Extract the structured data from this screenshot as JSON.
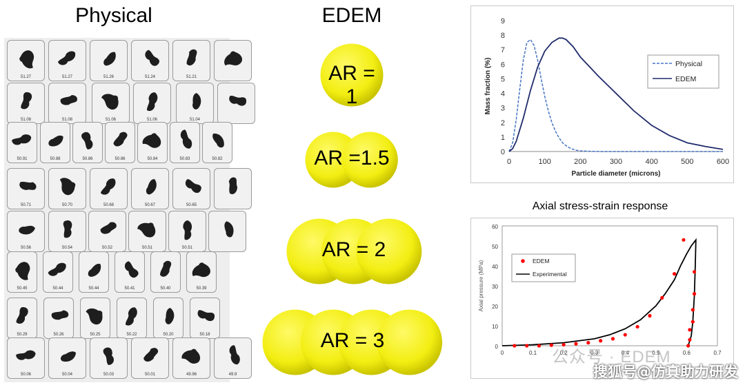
{
  "titles": {
    "physical": "Physical",
    "edem": "EDEM"
  },
  "particles": {
    "rows": [
      [
        "51.27",
        "51.27",
        "51.26",
        "51.24",
        "51.21",
        ""
      ],
      [
        "51.08",
        "51.08",
        "51.06",
        "51.06",
        "51.04",
        ""
      ],
      [
        "50.91",
        "50.88",
        "50.86",
        "50.86",
        "50.84",
        "50.83",
        "50.82"
      ],
      [
        "50.71",
        "50.70",
        "50.68",
        "50.67",
        "50.65",
        ""
      ],
      [
        "50.56",
        "50.54",
        "50.52",
        "50.51",
        "50.51",
        ""
      ],
      [
        "50.45",
        "50.44",
        "50.44",
        "50.41",
        "50.40",
        "50.39"
      ],
      [
        "50.29",
        "50.26",
        "50.25",
        "50.22",
        "50.20",
        "50.18"
      ],
      [
        "50.06",
        "50.04",
        "50.03",
        "50.01",
        "49.96",
        "49.9"
      ]
    ]
  },
  "edem_models": [
    {
      "label": "AR = 1",
      "spheres": 1
    },
    {
      "label": "AR =1.5",
      "spheres": 2
    },
    {
      "label": "AR = 2",
      "spheres": 3
    },
    {
      "label": "AR = 3",
      "spheres": 4
    }
  ],
  "colors": {
    "sphere": "#f2ee12",
    "physical_line": "#4472c4",
    "edem_line": "#1f2a6b",
    "edem_points": "#ff0000"
  },
  "chart_data": [
    {
      "type": "line",
      "title": "",
      "xlabel": "Particle diameter (microns)",
      "ylabel": "Mass fraction (%)",
      "xlim": [
        0,
        600
      ],
      "ylim": [
        0,
        9
      ],
      "xticks": [
        "0",
        "100",
        "200",
        "300",
        "400",
        "500",
        "600"
      ],
      "yticks": [
        "0",
        "1",
        "2",
        "3",
        "4",
        "5",
        "6",
        "7",
        "8",
        "9"
      ],
      "grid": false,
      "legend_position": "right",
      "series": [
        {
          "name": "Physical",
          "style": "dashed",
          "x": [
            0,
            10,
            20,
            30,
            40,
            50,
            60,
            70,
            80,
            90,
            100,
            110,
            120,
            130,
            140,
            150,
            160,
            170,
            180,
            190,
            200,
            220,
            240,
            260,
            280,
            300,
            350,
            400,
            500,
            600
          ],
          "y": [
            0,
            0.6,
            2.2,
            4.3,
            6.3,
            7.5,
            7.7,
            7.3,
            6.3,
            5.0,
            3.8,
            2.8,
            2.0,
            1.4,
            0.95,
            0.6,
            0.4,
            0.25,
            0.15,
            0.08,
            0.05,
            0.02,
            0.01,
            0,
            0,
            0,
            0,
            0,
            0,
            0
          ]
        },
        {
          "name": "EDEM",
          "style": "solid",
          "x": [
            0,
            10,
            20,
            40,
            60,
            80,
            100,
            120,
            140,
            150,
            160,
            180,
            200,
            250,
            300,
            350,
            400,
            450,
            500,
            550,
            600
          ],
          "y": [
            0,
            0.2,
            0.7,
            2.3,
            4.2,
            5.8,
            6.9,
            7.5,
            7.8,
            7.8,
            7.7,
            7.2,
            6.5,
            5.2,
            4.0,
            2.8,
            1.8,
            1.1,
            0.6,
            0.35,
            0.15
          ]
        }
      ]
    },
    {
      "type": "scatter",
      "title": "Axial stress-strain response",
      "xlabel": "",
      "ylabel": "Axial pressure (MPa)",
      "xlim": [
        0,
        0.7
      ],
      "ylim": [
        0,
        60
      ],
      "xticks": [
        "0",
        "0.1",
        "0.2",
        "0.3",
        "0.4",
        "0.5",
        "0.6",
        "0.7"
      ],
      "yticks": [
        "0",
        "10",
        "20",
        "30",
        "40",
        "50",
        "60"
      ],
      "grid": false,
      "legend_position": "top-left",
      "series": [
        {
          "name": "EDEM",
          "style": "points",
          "x": [
            0.04,
            0.08,
            0.12,
            0.16,
            0.2,
            0.24,
            0.28,
            0.32,
            0.36,
            0.4,
            0.44,
            0.48,
            0.52,
            0.56,
            0.59,
            0.625,
            0.625,
            0.62,
            0.62,
            0.61,
            0.61,
            0.605
          ],
          "y": [
            0,
            0,
            0,
            0.3,
            0.5,
            1,
            1.5,
            2.5,
            3.5,
            5.5,
            9.5,
            15,
            24,
            36,
            53,
            37,
            26,
            18,
            12,
            8,
            3,
            0
          ]
        },
        {
          "name": "Experimental",
          "style": "line",
          "x": [
            0,
            0.1,
            0.2,
            0.3,
            0.35,
            0.4,
            0.45,
            0.5,
            0.53,
            0.56,
            0.58,
            0.6,
            0.615,
            0.625,
            0.63,
            0.628,
            0.625,
            0.62,
            0.615,
            0.605
          ],
          "y": [
            0,
            0.5,
            1.5,
            3.5,
            5.5,
            8.5,
            13,
            20,
            26,
            33,
            40,
            46,
            50,
            52,
            53,
            40,
            25,
            12,
            5,
            0
          ]
        }
      ]
    }
  ],
  "watermark": {
    "line1": "公众号 · EDEM",
    "line2": "搜狐号@仿真助力研发"
  }
}
